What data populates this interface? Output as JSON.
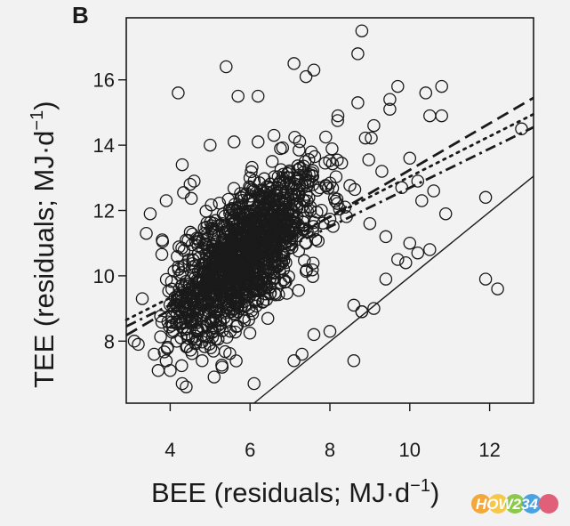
{
  "chart_data": {
    "type": "scatter",
    "panel_label": "B",
    "xlabel_main": "BEE (residuals; MJ·d",
    "xlabel_sup": "−1",
    "xlabel_close": ")",
    "ylabel_main": "TEE (residuals; MJ·d",
    "ylabel_sup": "−1",
    "ylabel_close": ")",
    "xlim": [
      2.9,
      13.1
    ],
    "ylim": [
      6.1,
      17.9
    ],
    "x_ticks": [
      4,
      6,
      8,
      10,
      12
    ],
    "y_ticks": [
      8,
      10,
      12,
      14,
      16
    ],
    "grid": false,
    "legend": "none",
    "marker": "open-circle",
    "dense_cloud": {
      "center": [
        5.8,
        10.6
      ],
      "x_range": [
        3.7,
        9.2
      ],
      "y_range": [
        6.7,
        14.8
      ],
      "slope": 0.95
    },
    "points": [
      [
        8.8,
        17.5
      ],
      [
        8.7,
        16.8
      ],
      [
        7.1,
        16.5
      ],
      [
        7.6,
        16.3
      ],
      [
        5.4,
        16.4
      ],
      [
        7.4,
        16.1
      ],
      [
        4.2,
        15.6
      ],
      [
        8.7,
        15.3
      ],
      [
        9.7,
        15.8
      ],
      [
        10.8,
        15.8
      ],
      [
        10.4,
        15.6
      ],
      [
        6.2,
        15.5
      ],
      [
        5.7,
        15.5
      ],
      [
        8.2,
        14.9
      ],
      [
        9.5,
        15.1
      ],
      [
        10.8,
        14.9
      ],
      [
        9.1,
        14.6
      ],
      [
        10.5,
        14.9
      ],
      [
        9.5,
        15.4
      ],
      [
        10.6,
        12.6
      ],
      [
        10.2,
        12.9
      ],
      [
        10.9,
        11.9
      ],
      [
        10.3,
        12.3
      ],
      [
        11.9,
        12.4
      ],
      [
        10.0,
        13.6
      ],
      [
        9.8,
        12.7
      ],
      [
        11.9,
        9.9
      ],
      [
        12.2,
        9.6
      ],
      [
        12.8,
        14.5
      ],
      [
        10.0,
        11.0
      ],
      [
        10.5,
        10.8
      ],
      [
        10.2,
        10.7
      ],
      [
        9.9,
        10.4
      ],
      [
        9.7,
        10.5
      ],
      [
        9.4,
        9.9
      ],
      [
        9.1,
        9.0
      ],
      [
        8.6,
        7.4
      ],
      [
        8.8,
        8.9
      ],
      [
        8.6,
        9.1
      ],
      [
        8.0,
        8.3
      ],
      [
        7.6,
        8.2
      ],
      [
        7.3,
        7.6
      ],
      [
        7.1,
        7.4
      ],
      [
        6.1,
        6.7
      ],
      [
        4.3,
        6.7
      ],
      [
        4.4,
        6.6
      ],
      [
        5.1,
        6.9
      ],
      [
        3.5,
        11.9
      ],
      [
        3.4,
        11.3
      ],
      [
        3.3,
        9.3
      ],
      [
        3.1,
        8.0
      ],
      [
        3.2,
        7.9
      ],
      [
        3.6,
        7.6
      ],
      [
        3.7,
        7.1
      ],
      [
        4.0,
        7.1
      ],
      [
        3.9,
        12.3
      ],
      [
        3.8,
        11.1
      ],
      [
        5.0,
        14.0
      ],
      [
        5.6,
        14.1
      ],
      [
        6.2,
        14.1
      ],
      [
        6.6,
        14.3
      ],
      [
        4.3,
        13.4
      ],
      [
        4.5,
        12.8
      ],
      [
        4.6,
        12.9
      ],
      [
        9.3,
        13.2
      ],
      [
        9.0,
        11.6
      ],
      [
        9.4,
        11.2
      ],
      [
        8.8,
        8.9
      ],
      [
        5.3,
        7.2
      ],
      [
        4.8,
        7.4
      ]
    ],
    "fit_lines": [
      {
        "style": "dashed",
        "x": [
          2.9,
          13.1
        ],
        "y": [
          8.18,
          15.45
        ]
      },
      {
        "style": "dotted",
        "x": [
          2.9,
          13.1
        ],
        "y": [
          8.65,
          14.95
        ]
      },
      {
        "style": "dash-dot",
        "x": [
          2.9,
          13.1
        ],
        "y": [
          8.45,
          14.55
        ]
      },
      {
        "style": "solid",
        "x": [
          6.1,
          13.1
        ],
        "y": [
          6.1,
          13.05
        ]
      }
    ]
  },
  "watermark": {
    "text": "HOW234"
  }
}
